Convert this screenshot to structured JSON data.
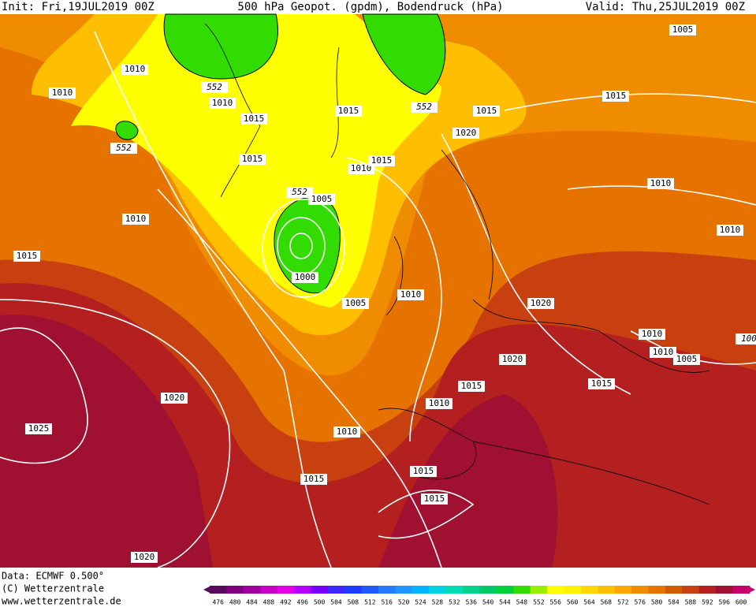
{
  "header": {
    "init": "Init: Fri,19JUL2019 00Z",
    "title": "500 hPa Geopot. (gpdm), Bodendruck (hPa)",
    "valid": "Valid: Thu,25JUL2019 00Z"
  },
  "isobars": {
    "labels": [
      "1005",
      "1010",
      "1010",
      "552",
      "1010",
      "1015",
      "1015",
      "552",
      "1015",
      "1015",
      "1020",
      "552",
      "1015",
      "1010",
      "1015",
      "552",
      "1005",
      "1010",
      "1010",
      "1015",
      "1010",
      "1000",
      "1005",
      "1010",
      "1020",
      "1010",
      "100",
      "1010",
      "1005",
      "1020",
      "1015",
      "1015",
      "1020",
      "1010",
      "1025",
      "1010",
      "1015",
      "1015",
      "1015",
      "1020"
    ]
  },
  "footer": {
    "data": "Data: ECMWF  0.500°",
    "copyright": "(C) Wetterzentrale",
    "url": "www.wetterzentrale.de"
  },
  "legend": {
    "values": [
      476,
      480,
      484,
      488,
      492,
      496,
      500,
      504,
      508,
      512,
      516,
      520,
      524,
      528,
      532,
      536,
      540,
      544,
      548,
      552,
      556,
      560,
      564,
      568,
      572,
      576,
      580,
      584,
      588,
      592,
      596,
      600
    ],
    "colors": [
      "#5a0a5a",
      "#800080",
      "#a000a0",
      "#c800c8",
      "#e600e6",
      "#b400ff",
      "#7800ff",
      "#3c28ff",
      "#1e3cff",
      "#1e5aff",
      "#2878ff",
      "#1e96ff",
      "#00b4ff",
      "#00d2e6",
      "#00dcb4",
      "#00d28c",
      "#00c864",
      "#00d23c",
      "#32dc00",
      "#96f000",
      "#ffff00",
      "#fff000",
      "#ffd700",
      "#ffbe00",
      "#ffa500",
      "#f08c00",
      "#e67300",
      "#d25a00",
      "#c84010",
      "#b42020",
      "#a01030",
      "#c8006e"
    ]
  }
}
